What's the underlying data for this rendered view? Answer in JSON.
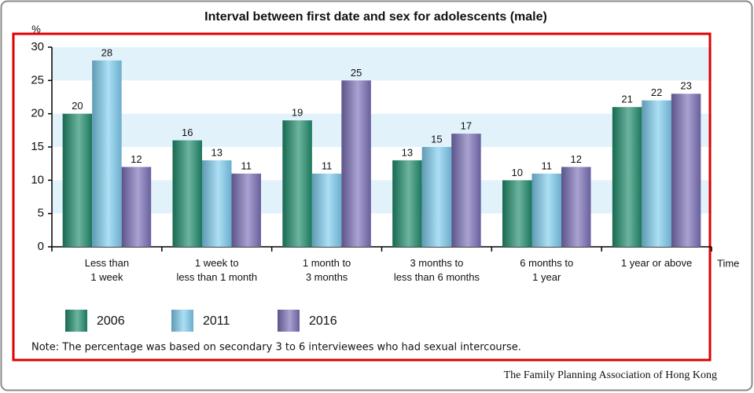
{
  "chart_data": {
    "type": "bar",
    "title": "Interval between first date and sex for adolescents (male)",
    "y_label": "%",
    "x_label": "Time",
    "categories": [
      "Less than\n1 week",
      "1 week to\nless than 1 month",
      "1 month to\n3 months",
      "3 months to\nless than 6 months",
      "6 months to\n1 year",
      "1 year or above"
    ],
    "series": [
      {
        "name": "2006",
        "color": "#1e8c6c",
        "values": [
          20,
          16,
          19,
          13,
          10,
          21
        ]
      },
      {
        "name": "2011",
        "color": "#7fcdf0",
        "values": [
          28,
          13,
          11,
          15,
          11,
          22
        ]
      },
      {
        "name": "2016",
        "color": "#7a70b8",
        "values": [
          12,
          11,
          25,
          17,
          12,
          23
        ]
      }
    ],
    "ylim": [
      0,
      30
    ],
    "yticks": [
      0,
      5,
      10,
      15,
      20,
      25,
      30
    ],
    "note": "Note: The percentage was based on secondary 3 to 6 interviewees who had sexual intercourse.",
    "source": "The Family Planning Association of Hong Kong"
  }
}
